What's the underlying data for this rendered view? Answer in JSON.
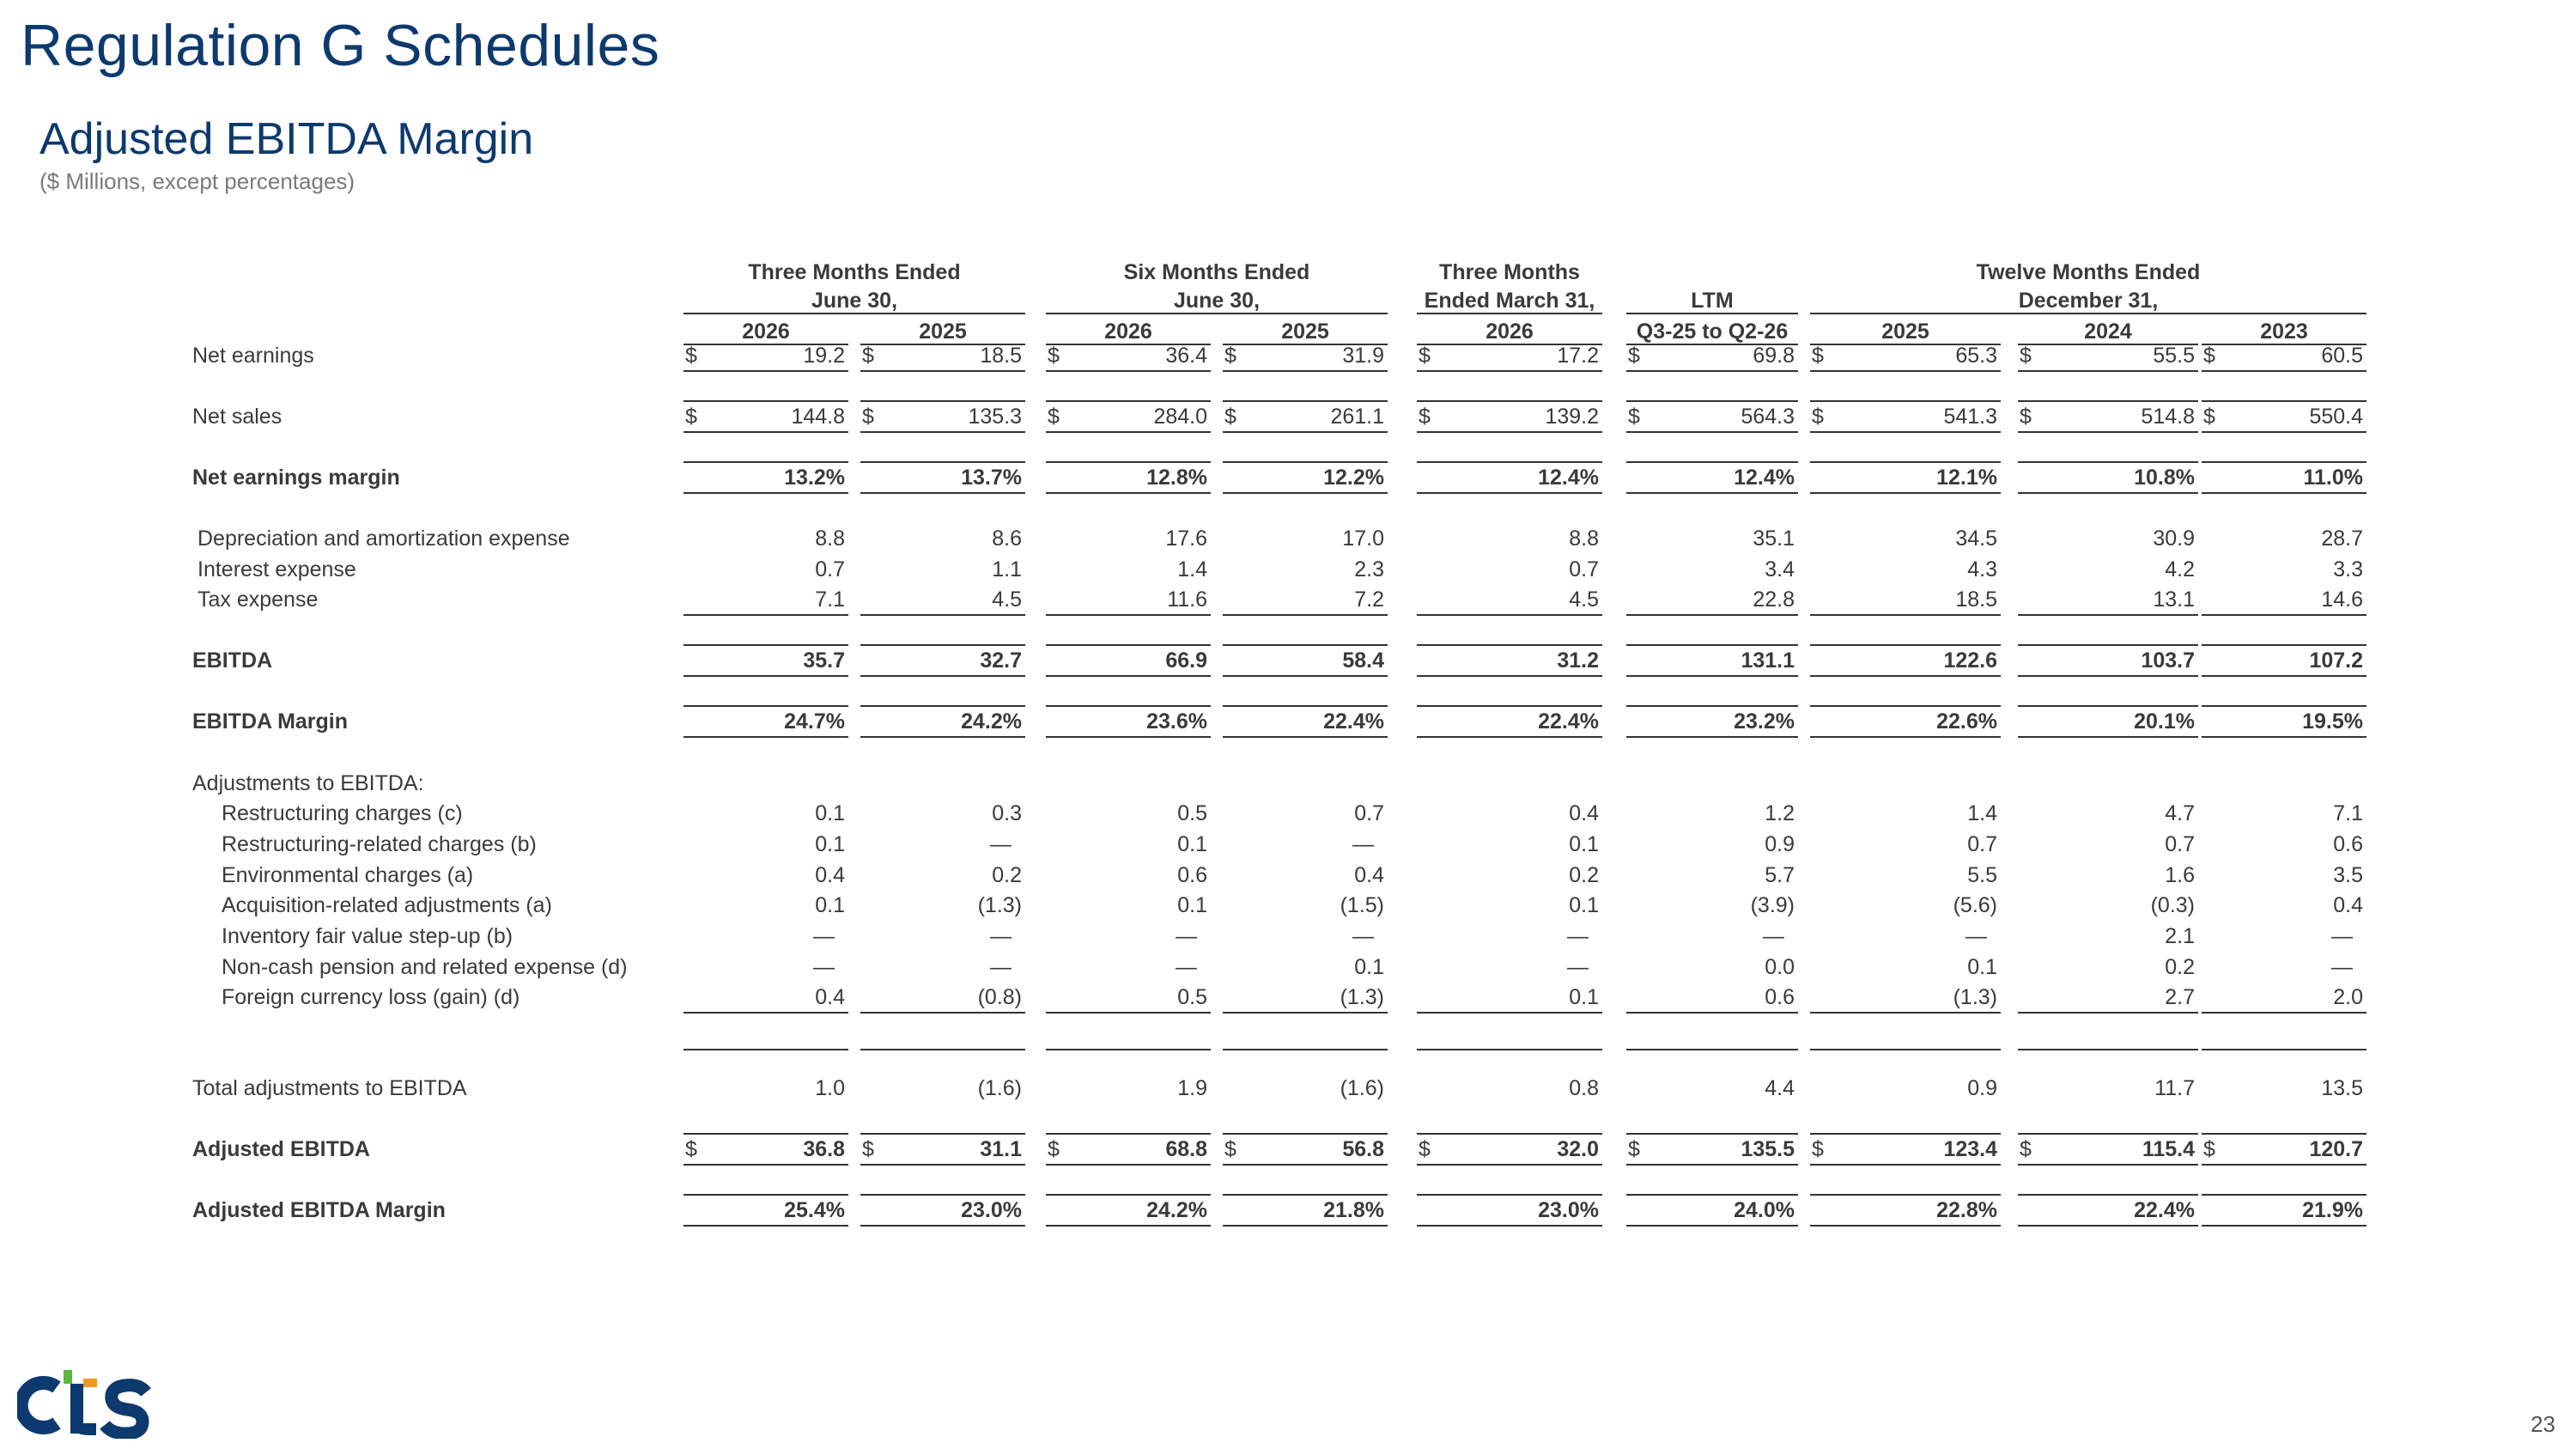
{
  "title": "Regulation G Schedules",
  "section": {
    "title": "Adjusted EBITDA Margin",
    "subtitle": "($ Millions, except percentages)"
  },
  "table": {
    "group_headers": [
      {
        "lines": [
          "Three Months Ended",
          "June 30,"
        ]
      },
      {
        "lines": [
          "Six Months Ended",
          "June 30,"
        ]
      },
      {
        "lines": [
          "Three Months",
          "Ended March 31,"
        ]
      },
      {
        "lines": [
          "",
          "LTM"
        ]
      },
      {
        "lines": [
          "Twelve Months Ended",
          "December 31,"
        ]
      }
    ],
    "columns": [
      "2026",
      "2025",
      "2026",
      "2025",
      "2026",
      "Q3-25 to Q2-26",
      "2025",
      "2024",
      "2023"
    ],
    "currency_symbol": "$",
    "rows": [
      {
        "label": "Net earnings",
        "bold": false,
        "dollar": true,
        "values": [
          "19.2",
          "18.5",
          "36.4",
          "31.9",
          "17.2",
          "69.8",
          "65.3",
          "55.5",
          "60.5"
        ]
      },
      {
        "label": "Net sales",
        "bold": false,
        "dollar": true,
        "values": [
          "144.8",
          "135.3",
          "284.0",
          "261.1",
          "139.2",
          "564.3",
          "541.3",
          "514.8",
          "550.4"
        ]
      },
      {
        "label": "Net earnings margin",
        "bold": true,
        "dollar": false,
        "values": [
          "13.2%",
          "13.7%",
          "12.8%",
          "12.2%",
          "12.4%",
          "12.4%",
          "12.1%",
          "10.8%",
          "11.0%"
        ]
      },
      {
        "label": "Depreciation and amortization expense",
        "bold": false,
        "dollar": false,
        "values": [
          "8.8",
          "8.6",
          "17.6",
          "17.0",
          "8.8",
          "35.1",
          "34.5",
          "30.9",
          "28.7"
        ]
      },
      {
        "label": "Interest expense",
        "bold": false,
        "dollar": false,
        "values": [
          "0.7",
          "1.1",
          "1.4",
          "2.3",
          "0.7",
          "3.4",
          "4.3",
          "4.2",
          "3.3"
        ]
      },
      {
        "label": "Tax expense",
        "bold": false,
        "dollar": false,
        "values": [
          "7.1",
          "4.5",
          "11.6",
          "7.2",
          "4.5",
          "22.8",
          "18.5",
          "13.1",
          "14.6"
        ]
      },
      {
        "label": "EBITDA",
        "bold": true,
        "dollar": false,
        "values": [
          "35.7",
          "32.7",
          "66.9",
          "58.4",
          "31.2",
          "131.1",
          "122.6",
          "103.7",
          "107.2"
        ]
      },
      {
        "label": "EBITDA Margin",
        "bold": true,
        "dollar": false,
        "values": [
          "24.7%",
          "24.2%",
          "23.6%",
          "22.4%",
          "22.4%",
          "23.2%",
          "22.6%",
          "20.1%",
          "19.5%"
        ]
      },
      {
        "label": "Adjustments to EBITDA:",
        "bold": false,
        "dollar": false,
        "values": []
      },
      {
        "label": "Restructuring charges (c)",
        "bold": false,
        "dollar": false,
        "values": [
          "0.1",
          "0.3",
          "0.5",
          "0.7",
          "0.4",
          "1.2",
          "1.4",
          "4.7",
          "7.1"
        ]
      },
      {
        "label": "Restructuring-related charges (b)",
        "bold": false,
        "dollar": false,
        "values": [
          "0.1",
          "—",
          "0.1",
          "—",
          "0.1",
          "0.9",
          "0.7",
          "0.7",
          "0.6"
        ]
      },
      {
        "label": "Environmental charges (a)",
        "bold": false,
        "dollar": false,
        "values": [
          "0.4",
          "0.2",
          "0.6",
          "0.4",
          "0.2",
          "5.7",
          "5.5",
          "1.6",
          "3.5"
        ]
      },
      {
        "label": "Acquisition-related adjustments (a)",
        "bold": false,
        "dollar": false,
        "values": [
          "0.1",
          "(1.3)",
          "0.1",
          "(1.5)",
          "0.1",
          "(3.9)",
          "(5.6)",
          "(0.3)",
          "0.4"
        ]
      },
      {
        "label": "Inventory fair value step-up (b)",
        "bold": false,
        "dollar": false,
        "values": [
          "—",
          "—",
          "—",
          "—",
          "—",
          "—",
          "—",
          "2.1",
          "—"
        ]
      },
      {
        "label": "Non-cash pension and related expense (d)",
        "bold": false,
        "dollar": false,
        "values": [
          "—",
          "—",
          "—",
          "0.1",
          "—",
          "0.0",
          "0.1",
          "0.2",
          "—"
        ]
      },
      {
        "label": "Foreign currency loss (gain) (d)",
        "bold": false,
        "dollar": false,
        "values": [
          "0.4",
          "(0.8)",
          "0.5",
          "(1.3)",
          "0.1",
          "0.6",
          "(1.3)",
          "2.7",
          "2.0"
        ]
      },
      {
        "label": "Total adjustments to EBITDA",
        "bold": false,
        "dollar": false,
        "values": [
          "1.0",
          "(1.6)",
          "1.9",
          "(1.6)",
          "0.8",
          "4.4",
          "0.9",
          "11.7",
          "13.5"
        ]
      },
      {
        "label": "Adjusted EBITDA",
        "bold": true,
        "dollar": true,
        "values": [
          "36.8",
          "31.1",
          "68.8",
          "56.8",
          "32.0",
          "135.5",
          "123.4",
          "115.4",
          "120.7"
        ]
      },
      {
        "label": "Adjusted EBITDA Margin",
        "bold": true,
        "dollar": false,
        "values": [
          "25.4%",
          "23.0%",
          "24.2%",
          "21.8%",
          "23.0%",
          "24.0%",
          "22.8%",
          "22.4%",
          "21.9%"
        ]
      }
    ]
  },
  "footer": {
    "logo_text": "cts",
    "page_number": "23"
  },
  "colors": {
    "title": "#0d3a6e",
    "text": "#3a3a3a",
    "subtitle": "#7a7a7a",
    "rule": "#333333",
    "logo_blue": "#0d3a6e",
    "logo_green": "#5db543",
    "logo_orange": "#f39a1e"
  }
}
